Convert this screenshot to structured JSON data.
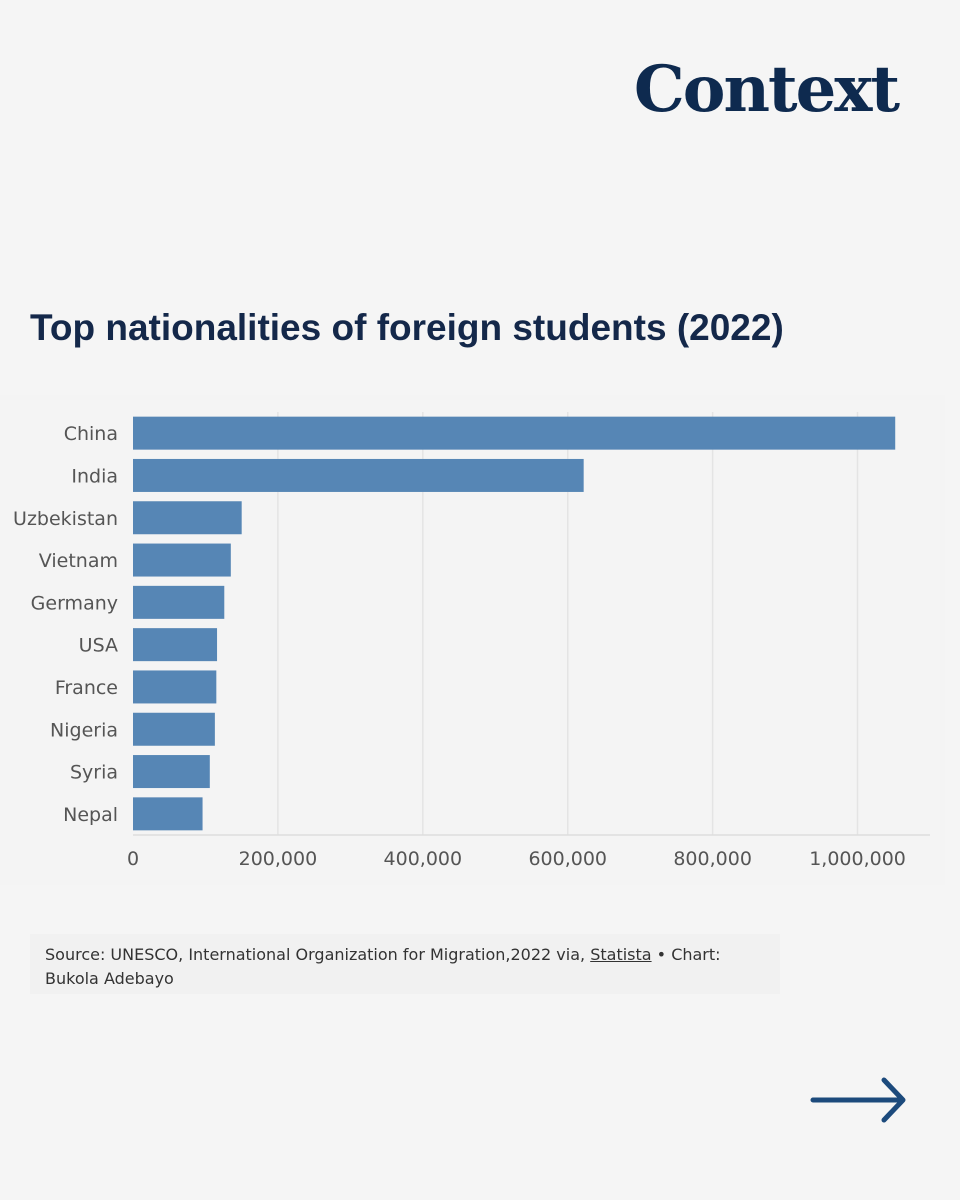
{
  "brand": {
    "logo_text": "Context"
  },
  "title": "Top nationalities of foreign students (2022)",
  "chart_data": {
    "type": "bar",
    "orientation": "horizontal",
    "categories": [
      "China",
      "India",
      "Uzbekistan",
      "Vietnam",
      "Germany",
      "USA",
      "France",
      "Nigeria",
      "Syria",
      "Nepal"
    ],
    "values": [
      1052000,
      622000,
      150000,
      135000,
      126000,
      116000,
      115000,
      113000,
      106000,
      96000
    ],
    "x_ticks": [
      "0",
      "200,000",
      "400,000",
      "600,000",
      "800,000",
      "1,000,000"
    ],
    "x_tick_values": [
      0,
      200000,
      400000,
      600000,
      800000,
      1000000
    ],
    "xlim": [
      0,
      1100000
    ],
    "grid": true,
    "bar_color": "#5686b5"
  },
  "source": {
    "prefix": "Source: UNESCO, International Organization for Migration,2022 via, ",
    "link_text": "Statista",
    "suffix": " • Chart: Bukola Adebayo"
  },
  "nav": {
    "next_icon": "arrow-right-icon",
    "arrow_color": "#1c4a7c"
  }
}
